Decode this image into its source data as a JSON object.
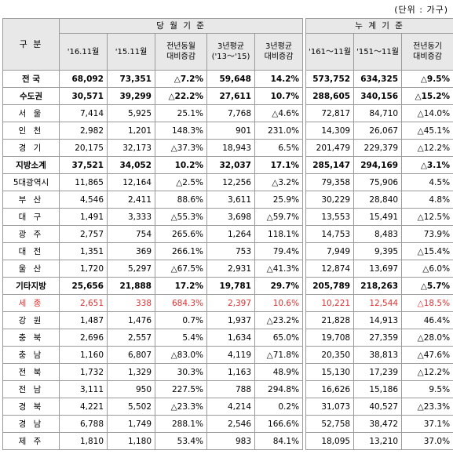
{
  "unit_label": "(단위 : 가구)",
  "header": {
    "region": "구 분",
    "monthly_group": "당 월 기 준",
    "cumulative_group": "누 계 기 준",
    "cols": [
      "'16.11월",
      "'15.11월",
      "전년동월\n대비증감",
      "3년평균\n('13～'15)",
      "3년평균\n대비증감",
      "'161～11월",
      "'151～11월",
      "전년동기\n대비증감"
    ]
  },
  "rows": [
    {
      "name": "전 국",
      "style": "bold",
      "v": [
        "68,092",
        "73,351",
        "△7.2%",
        "59,648",
        "14.2%",
        "573,752",
        "634,325",
        "△9.5%"
      ]
    },
    {
      "name": "수도권",
      "style": "bold",
      "v": [
        "30,571",
        "39,299",
        "△22.2%",
        "27,611",
        "10.7%",
        "288,605",
        "340,156",
        "△15.2%"
      ]
    },
    {
      "name": "서 울",
      "style": "",
      "v": [
        "7,414",
        "5,925",
        "25.1%",
        "7,768",
        "△4.6%",
        "72,817",
        "84,710",
        "△14.0%"
      ]
    },
    {
      "name": "인 천",
      "style": "",
      "v": [
        "2,982",
        "1,201",
        "148.3%",
        "901",
        "231.0%",
        "14,309",
        "26,067",
        "△45.1%"
      ]
    },
    {
      "name": "경 기",
      "style": "",
      "v": [
        "20,175",
        "32,173",
        "△37.3%",
        "18,943",
        "6.5%",
        "201,479",
        "229,379",
        "△12.2%"
      ]
    },
    {
      "name": "지방소계",
      "style": "bold",
      "v": [
        "37,521",
        "34,052",
        "10.2%",
        "32,037",
        "17.1%",
        "285,147",
        "294,169",
        "△3.1%"
      ]
    },
    {
      "name": "5대광역시",
      "style": "tight",
      "v": [
        "11,865",
        "12,164",
        "△2.5%",
        "12,256",
        "△3.2%",
        "79,358",
        "75,906",
        "4.5%"
      ]
    },
    {
      "name": "부 산",
      "style": "",
      "v": [
        "4,546",
        "2,411",
        "88.6%",
        "3,611",
        "25.9%",
        "30,229",
        "28,840",
        "4.8%"
      ]
    },
    {
      "name": "대 구",
      "style": "",
      "v": [
        "1,491",
        "3,333",
        "△55.3%",
        "3,698",
        "△59.7%",
        "13,553",
        "15,491",
        "△12.5%"
      ]
    },
    {
      "name": "광 주",
      "style": "",
      "v": [
        "2,757",
        "754",
        "265.6%",
        "1,264",
        "118.1%",
        "14,753",
        "8,483",
        "73.9%"
      ]
    },
    {
      "name": "대 전",
      "style": "",
      "v": [
        "1,351",
        "369",
        "266.1%",
        "753",
        "79.4%",
        "7,949",
        "9,395",
        "△15.4%"
      ]
    },
    {
      "name": "울 산",
      "style": "",
      "v": [
        "1,720",
        "5,297",
        "△67.5%",
        "2,931",
        "△41.3%",
        "12,874",
        "13,697",
        "△6.0%"
      ]
    },
    {
      "name": "기타지방",
      "style": "bold",
      "v": [
        "25,656",
        "21,888",
        "17.2%",
        "19,781",
        "29.7%",
        "205,789",
        "218,263",
        "△5.7%"
      ]
    },
    {
      "name": "세 종",
      "style": "red",
      "v": [
        "2,651",
        "338",
        "684.3%",
        "2,397",
        "10.6%",
        "10,221",
        "12,544",
        "△18.5%"
      ]
    },
    {
      "name": "강 원",
      "style": "",
      "v": [
        "1,487",
        "1,476",
        "0.7%",
        "1,937",
        "△23.2%",
        "21,828",
        "14,913",
        "46.4%"
      ]
    },
    {
      "name": "충 북",
      "style": "",
      "v": [
        "2,696",
        "2,557",
        "5.4%",
        "1,634",
        "65.0%",
        "19,708",
        "27,359",
        "△28.0%"
      ]
    },
    {
      "name": "충 남",
      "style": "",
      "v": [
        "1,160",
        "6,807",
        "△83.0%",
        "4,119",
        "△71.8%",
        "20,350",
        "38,813",
        "△47.6%"
      ]
    },
    {
      "name": "전 북",
      "style": "",
      "v": [
        "1,732",
        "1,329",
        "30.3%",
        "1,163",
        "48.9%",
        "15,130",
        "17,239",
        "△12.2%"
      ]
    },
    {
      "name": "전 남",
      "style": "",
      "v": [
        "3,111",
        "950",
        "227.5%",
        "788",
        "294.8%",
        "16,626",
        "15,186",
        "9.5%"
      ]
    },
    {
      "name": "경 북",
      "style": "",
      "v": [
        "4,221",
        "5,502",
        "△23.3%",
        "4,214",
        "0.2%",
        "31,073",
        "40,527",
        "△23.3%"
      ]
    },
    {
      "name": "경 남",
      "style": "",
      "v": [
        "6,788",
        "1,749",
        "288.1%",
        "2,546",
        "166.6%",
        "52,758",
        "38,472",
        "37.1%"
      ]
    },
    {
      "name": "제 주",
      "style": "",
      "v": [
        "1,810",
        "1,180",
        "53.4%",
        "983",
        "84.1%",
        "18,095",
        "13,210",
        "37.0%"
      ]
    }
  ]
}
